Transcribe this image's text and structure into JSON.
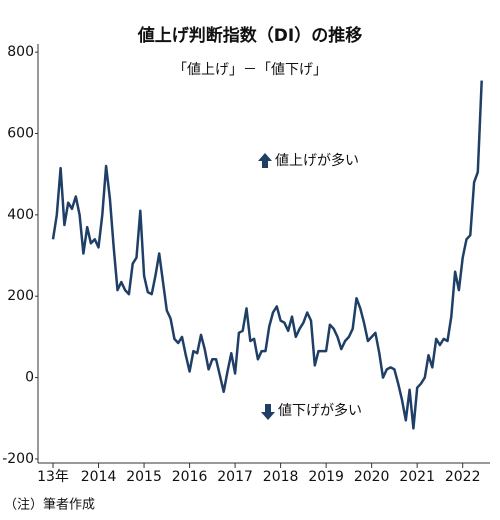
{
  "chart_data": {
    "type": "line",
    "title": "値上げ判断指数（DI）の推移",
    "subtitle": "「値上げ」－「値下げ」",
    "annotations": [
      "値上げが多い",
      "値下げが多い"
    ],
    "note": "（注）筆者作成",
    "xlim": [
      2012.67,
      2022.6
    ],
    "xticks": [
      {
        "value": 2013,
        "label": "13年"
      },
      2014,
      2015,
      2016,
      2017,
      2018,
      2019,
      2020,
      2021,
      2022
    ],
    "ylim": [
      -210,
      820
    ],
    "yticks": [
      -200,
      0,
      200,
      400,
      600,
      800
    ],
    "series": [
      {
        "color": "#1f3f66",
        "x": [
          2013,
          2013.083,
          2013.167,
          2013.25,
          2013.333,
          2013.417,
          2013.5,
          2013.583,
          2013.667,
          2013.75,
          2013.833,
          2013.917,
          2014,
          2014.083,
          2014.167,
          2014.25,
          2014.333,
          2014.417,
          2014.5,
          2014.583,
          2014.667,
          2014.75,
          2014.833,
          2014.917,
          2015,
          2015.083,
          2015.167,
          2015.25,
          2015.333,
          2015.417,
          2015.5,
          2015.583,
          2015.667,
          2015.75,
          2015.833,
          2015.917,
          2016,
          2016.083,
          2016.167,
          2016.25,
          2016.333,
          2016.417,
          2016.5,
          2016.583,
          2016.667,
          2016.75,
          2016.833,
          2016.917,
          2017,
          2017.083,
          2017.167,
          2017.25,
          2017.333,
          2017.417,
          2017.5,
          2017.583,
          2017.667,
          2017.75,
          2017.833,
          2017.917,
          2018,
          2018.083,
          2018.167,
          2018.25,
          2018.333,
          2018.417,
          2018.5,
          2018.583,
          2018.667,
          2018.75,
          2018.833,
          2018.917,
          2019,
          2019.083,
          2019.167,
          2019.25,
          2019.333,
          2019.417,
          2019.5,
          2019.583,
          2019.667,
          2019.75,
          2019.833,
          2019.917,
          2020,
          2020.083,
          2020.167,
          2020.25,
          2020.333,
          2020.417,
          2020.5,
          2020.583,
          2020.667,
          2020.75,
          2020.833,
          2020.917,
          2021,
          2021.083,
          2021.167,
          2021.25,
          2021.333,
          2021.417,
          2021.5,
          2021.583,
          2021.667,
          2021.75,
          2021.833,
          2021.917,
          2022,
          2022.083,
          2022.167,
          2022.25,
          2022.333,
          2022.417
        ],
        "values": [
          340,
          400,
          515,
          375,
          430,
          415,
          445,
          400,
          305,
          370,
          330,
          340,
          320,
          400,
          520,
          440,
          320,
          215,
          235,
          215,
          205,
          280,
          295,
          410,
          250,
          210,
          205,
          250,
          305,
          235,
          165,
          145,
          95,
          85,
          100,
          55,
          15,
          65,
          60,
          105,
          70,
          20,
          45,
          45,
          5,
          -35,
          15,
          60,
          10,
          110,
          115,
          170,
          90,
          95,
          45,
          65,
          65,
          125,
          160,
          175,
          140,
          135,
          115,
          150,
          100,
          120,
          135,
          160,
          140,
          30,
          65,
          65,
          65,
          130,
          120,
          100,
          70,
          90,
          100,
          120,
          195,
          170,
          135,
          90,
          100,
          110,
          60,
          0,
          20,
          25,
          20,
          -15,
          -55,
          -105,
          -30,
          -125,
          -25,
          -15,
          0,
          55,
          25,
          95,
          80,
          95,
          90,
          150,
          260,
          215,
          295,
          340,
          350,
          480,
          505,
          730
        ]
      }
    ]
  }
}
